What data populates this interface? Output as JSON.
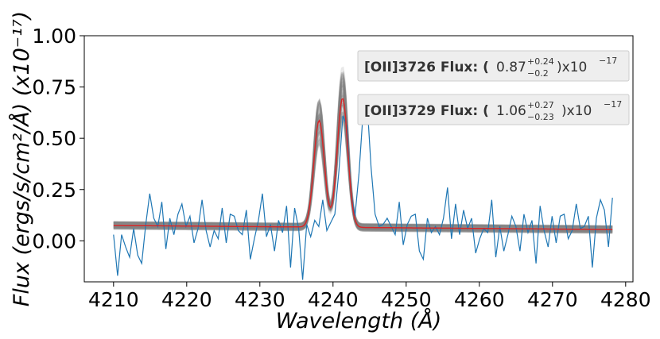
{
  "chart_data": {
    "type": "line",
    "title": "",
    "xlabel": "Wavelength (Å)",
    "ylabel": "Flux (ergs/s/cm²/Å) (x10⁻¹⁷)",
    "xlim": [
      4206,
      4281
    ],
    "ylim": [
      -0.2,
      1.0
    ],
    "xticks": [
      4210,
      4220,
      4230,
      4240,
      4250,
      4260,
      4270,
      4280
    ],
    "yticks": [
      "0.00",
      "0.25",
      "0.50",
      "0.75",
      "1.00"
    ],
    "ytick_values": [
      0.0,
      0.25,
      0.5,
      0.75,
      1.0
    ],
    "grid": false,
    "colors": {
      "data": "#1f77b4",
      "model": "#d62728",
      "samples": "#808080",
      "box_fill": "#eeeeee",
      "box_edge": "#cccccc"
    },
    "series": [
      {
        "kind": "observed",
        "x_start": 4210,
        "x_step": 0.55,
        "values": [
          0.03,
          -0.17,
          0.03,
          -0.03,
          -0.08,
          0.06,
          -0.07,
          -0.11,
          0.08,
          0.23,
          0.11,
          0.07,
          0.19,
          -0.04,
          0.11,
          0.03,
          0.13,
          0.18,
          0.07,
          0.12,
          -0.01,
          0.06,
          0.2,
          0.05,
          -0.03,
          0.05,
          0.01,
          0.16,
          -0.01,
          0.13,
          0.12,
          0.05,
          0.03,
          0.15,
          -0.09,
          0.01,
          0.1,
          0.23,
          0.02,
          0.08,
          -0.05,
          0.1,
          0.04,
          0.17,
          -0.13,
          0.16,
          0.06,
          -0.19,
          0.08,
          0.02,
          0.1,
          0.07,
          0.2,
          0.05,
          0.09,
          0.13,
          0.34,
          0.61,
          0.56,
          0.24,
          0.12,
          0.33,
          0.62,
          0.68,
          0.36,
          0.13,
          0.07,
          0.08,
          0.11,
          0.07,
          0.03,
          0.19,
          -0.02,
          0.08,
          0.12,
          0.13,
          -0.05,
          -0.09,
          0.11,
          0.04,
          0.07,
          0.03,
          0.11,
          0.26,
          0.01,
          0.18,
          0.03,
          0.15,
          0.06,
          0.11,
          -0.06,
          0.01,
          0.06,
          0.04,
          0.2,
          -0.08,
          0.07,
          -0.05,
          0.03,
          0.12,
          0.07,
          -0.05,
          0.13,
          0.04,
          0.1,
          -0.11,
          0.17,
          0.05,
          -0.03,
          0.12,
          -0.01,
          0.12,
          0.13,
          0.01,
          0.05,
          0.18,
          0.06,
          0.07,
          0.12,
          -0.13,
          0.11,
          0.2,
          0.15,
          -0.03,
          0.21
        ]
      },
      {
        "kind": "model",
        "continuum_start": 0.075,
        "continuum_end": 0.055,
        "lines": [
          {
            "center": 4238.1,
            "sigma": 0.72,
            "peak": 0.52
          },
          {
            "center": 4241.3,
            "sigma": 0.72,
            "peak": 0.63
          }
        ]
      }
    ],
    "annotations": [
      {
        "label": "[OII]3726 Flux: (",
        "value": "0.87",
        "upper": "+0.24",
        "lower": "−0.2",
        "suffix": ")x10",
        "exponent": "−17"
      },
      {
        "label": "[OII]3729 Flux: (",
        "value": "1.06",
        "upper": "+0.27",
        "lower": "−0.23",
        "suffix": ")x10",
        "exponent": "−17"
      }
    ]
  }
}
